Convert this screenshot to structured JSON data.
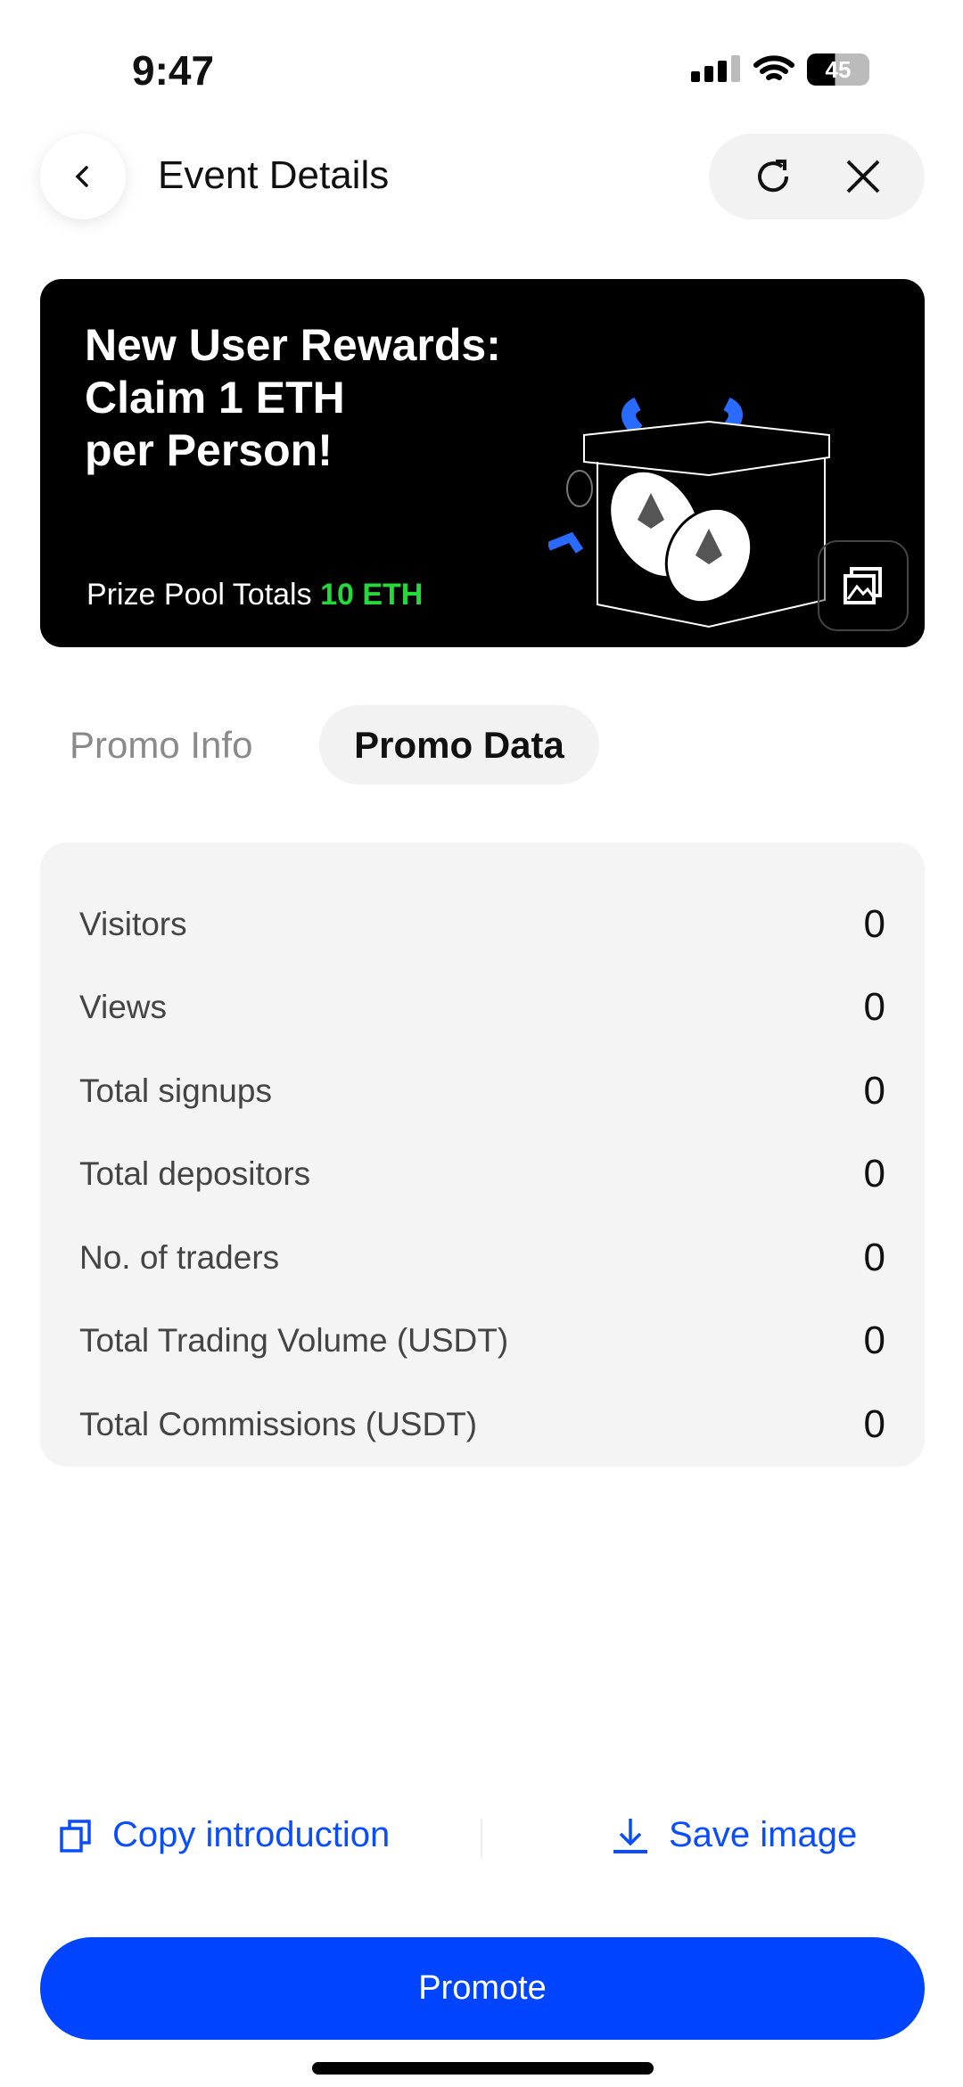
{
  "status_bar": {
    "time": "9:47",
    "battery": "45"
  },
  "header": {
    "title": "Event Details"
  },
  "banner": {
    "title_lines": [
      "New User Rewards:",
      "Claim 1 ETH",
      "per Person!"
    ],
    "prize_label": "Prize Pool Totals",
    "prize_value": "10 ETH"
  },
  "tabs": [
    {
      "label": "Promo Info",
      "active": false
    },
    {
      "label": "Promo Data",
      "active": true
    }
  ],
  "stats": [
    {
      "label": "Visitors",
      "value": "0"
    },
    {
      "label": "Views",
      "value": "0"
    },
    {
      "label": "Total signups",
      "value": "0"
    },
    {
      "label": "Total depositors",
      "value": "0"
    },
    {
      "label": "No. of traders",
      "value": "0"
    },
    {
      "label": "Total Trading Volume (USDT)",
      "value": "0"
    },
    {
      "label": "Total Commissions (USDT)",
      "value": "0"
    }
  ],
  "actions": {
    "copy": "Copy introduction",
    "save": "Save image"
  },
  "promote": "Promote",
  "colors": {
    "accent": "#0044ff",
    "prize": "#25d93a"
  }
}
